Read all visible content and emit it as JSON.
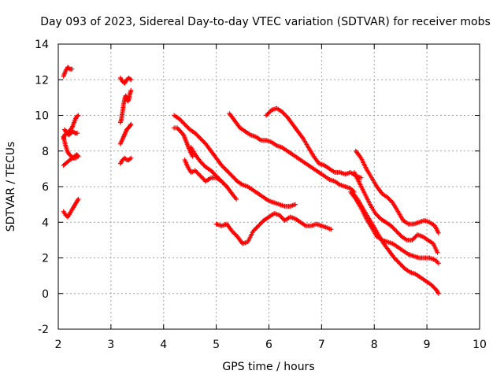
{
  "chart_data": {
    "type": "scatter",
    "title": "Day 093 of 2023, Sidereal Day-to-day VTEC variation (SDTVAR) for receiver mobs",
    "xlabel": "GPS time / hours",
    "ylabel": "SDTVAR / TECUs",
    "xlim": [
      2,
      10
    ],
    "ylim": [
      -2,
      14
    ],
    "grid": true,
    "marker": "+",
    "color": "#ff0000",
    "x_ticks": [
      2,
      3,
      4,
      5,
      6,
      7,
      8,
      9,
      10
    ],
    "y_ticks": [
      -2,
      0,
      2,
      4,
      6,
      8,
      10,
      12,
      14
    ],
    "series": [
      {
        "name": "s1",
        "x": [
          2.1,
          2.14,
          2.18,
          2.22,
          2.26
        ],
        "y": [
          12.2,
          12.5,
          12.7,
          12.6,
          12.6
        ]
      },
      {
        "name": "s2",
        "x": [
          2.1,
          2.12,
          2.16,
          2.2,
          2.26,
          2.3,
          2.34,
          2.38
        ],
        "y": [
          8.7,
          8.9,
          9.0,
          9.1,
          9.3,
          9.6,
          9.9,
          10.0
        ]
      },
      {
        "name": "s3",
        "x": [
          2.1,
          2.13,
          2.17,
          2.21,
          2.25,
          2.29,
          2.33,
          2.38
        ],
        "y": [
          8.8,
          8.4,
          8.0,
          7.8,
          7.7,
          7.6,
          7.6,
          7.7
        ]
      },
      {
        "name": "s4",
        "x": [
          2.1,
          2.14,
          2.18,
          2.22,
          2.27,
          2.31,
          2.35,
          2.38
        ],
        "y": [
          7.2,
          7.3,
          7.4,
          7.5,
          7.6,
          7.7,
          7.8,
          7.7
        ]
      },
      {
        "name": "s5",
        "x": [
          2.12,
          2.16,
          2.2,
          2.24,
          2.28,
          2.32,
          2.36
        ],
        "y": [
          9.2,
          9.0,
          8.9,
          9.0,
          9.1,
          9.0,
          9.0
        ]
      },
      {
        "name": "s6",
        "x": [
          2.1,
          2.14,
          2.18,
          2.22,
          2.26,
          2.3,
          2.34,
          2.38
        ],
        "y": [
          4.6,
          4.4,
          4.3,
          4.5,
          4.7,
          4.9,
          5.1,
          5.3
        ]
      },
      {
        "name": "s7",
        "x": [
          3.18,
          3.22,
          3.26,
          3.3,
          3.34,
          3.38
        ],
        "y": [
          12.1,
          11.9,
          11.8,
          12.0,
          12.1,
          12.0
        ]
      },
      {
        "name": "s8",
        "x": [
          3.18,
          3.2,
          3.22,
          3.24,
          3.26,
          3.28,
          3.3,
          3.32,
          3.34,
          3.36,
          3.38
        ],
        "y": [
          9.6,
          9.8,
          10.2,
          10.6,
          10.9,
          11.1,
          11.0,
          10.8,
          10.9,
          11.2,
          11.4
        ]
      },
      {
        "name": "s9",
        "x": [
          3.18,
          3.21,
          3.24,
          3.27,
          3.3,
          3.33,
          3.36,
          3.38
        ],
        "y": [
          8.4,
          8.6,
          8.8,
          9.0,
          9.2,
          9.3,
          9.4,
          9.5
        ]
      },
      {
        "name": "s10",
        "x": [
          3.18,
          3.22,
          3.26,
          3.3,
          3.34,
          3.38
        ],
        "y": [
          7.3,
          7.5,
          7.6,
          7.5,
          7.5,
          7.6
        ]
      },
      {
        "name": "s11",
        "x": [
          4.2,
          4.3,
          4.4,
          4.5,
          4.6,
          4.7,
          4.8,
          4.9,
          5.0,
          5.1,
          5.2,
          5.3,
          5.4,
          5.5,
          5.6,
          5.7,
          5.8,
          5.9,
          6.0,
          6.1,
          6.2,
          6.3,
          6.4,
          6.5
        ],
        "y": [
          10.0,
          9.8,
          9.5,
          9.2,
          9.0,
          8.7,
          8.4,
          8.0,
          7.6,
          7.2,
          6.9,
          6.6,
          6.3,
          6.1,
          6.0,
          5.8,
          5.6,
          5.4,
          5.2,
          5.1,
          5.0,
          4.9,
          4.9,
          5.0
        ]
      },
      {
        "name": "s12",
        "x": [
          4.2,
          4.26,
          4.32,
          4.38,
          4.42,
          4.46,
          4.5,
          4.55
        ],
        "y": [
          9.3,
          9.3,
          9.1,
          8.9,
          8.6,
          8.3,
          8.0,
          7.7
        ]
      },
      {
        "name": "s13",
        "x": [
          4.52,
          4.6,
          4.7,
          4.8,
          4.9,
          5.0,
          5.1,
          5.2,
          5.3,
          5.38
        ],
        "y": [
          8.2,
          7.8,
          7.4,
          7.1,
          6.9,
          6.6,
          6.3,
          6.0,
          5.6,
          5.3
        ]
      },
      {
        "name": "s14",
        "x": [
          4.4,
          4.46,
          4.52,
          4.6,
          4.7,
          4.8,
          4.9,
          5.0,
          5.1,
          5.2
        ],
        "y": [
          7.5,
          7.1,
          6.8,
          6.9,
          6.6,
          6.3,
          6.5,
          6.5,
          6.3,
          6.0
        ]
      },
      {
        "name": "s15",
        "x": [
          5.0,
          5.1,
          5.2,
          5.3,
          5.4,
          5.5,
          5.6,
          5.7,
          5.8,
          5.9,
          6.0,
          6.1,
          6.2,
          6.3,
          6.4,
          6.5,
          6.6,
          6.7,
          6.8,
          6.9,
          7.0,
          7.1,
          7.18
        ],
        "y": [
          3.9,
          3.8,
          3.9,
          3.5,
          3.2,
          2.8,
          2.9,
          3.5,
          3.8,
          4.1,
          4.3,
          4.5,
          4.4,
          4.1,
          4.3,
          4.2,
          4.0,
          3.8,
          3.8,
          3.9,
          3.8,
          3.7,
          3.6
        ]
      },
      {
        "name": "s16",
        "x": [
          5.25,
          5.35,
          5.45,
          5.55,
          5.65,
          5.75,
          5.85,
          5.95,
          6.05,
          6.15,
          6.25,
          6.35,
          6.45,
          6.55,
          6.65,
          6.75,
          6.85,
          6.95,
          7.05,
          7.15,
          7.25,
          7.35,
          7.45,
          7.55,
          7.62
        ],
        "y": [
          10.1,
          9.7,
          9.3,
          9.1,
          8.9,
          8.8,
          8.6,
          8.6,
          8.5,
          8.3,
          8.2,
          8.0,
          7.8,
          7.6,
          7.4,
          7.2,
          7.0,
          6.8,
          6.6,
          6.4,
          6.3,
          6.1,
          6.0,
          5.9,
          5.7
        ]
      },
      {
        "name": "s17",
        "x": [
          5.95,
          6.05,
          6.15,
          6.25,
          6.35,
          6.45,
          6.55,
          6.65,
          6.75,
          6.85,
          6.95,
          7.05,
          7.15,
          7.25,
          7.35,
          7.45,
          7.55,
          7.65,
          7.75
        ],
        "y": [
          10.0,
          10.3,
          10.4,
          10.2,
          9.9,
          9.5,
          9.1,
          8.7,
          8.2,
          7.7,
          7.3,
          7.2,
          7.0,
          6.8,
          6.8,
          6.7,
          6.8,
          6.6,
          6.5
        ]
      },
      {
        "name": "s18",
        "x": [
          7.65,
          7.75,
          7.85,
          7.95,
          8.05,
          8.15,
          8.25,
          8.35,
          8.45,
          8.55,
          8.65,
          8.75,
          8.85,
          8.95,
          9.05,
          9.15,
          9.22
        ],
        "y": [
          8.0,
          7.6,
          7.0,
          6.5,
          6.0,
          5.6,
          5.4,
          5.1,
          4.6,
          4.1,
          3.9,
          3.9,
          4.0,
          4.1,
          4.0,
          3.8,
          3.4
        ]
      },
      {
        "name": "s19",
        "x": [
          7.62,
          7.72,
          7.82,
          7.92,
          8.02,
          8.12,
          8.22,
          8.32,
          8.42,
          8.52,
          8.62,
          8.72,
          8.82,
          8.92,
          9.02,
          9.12,
          9.2
        ],
        "y": [
          6.8,
          6.2,
          5.6,
          5.0,
          4.5,
          4.2,
          4.0,
          3.8,
          3.5,
          3.2,
          3.0,
          3.0,
          3.3,
          3.2,
          3.0,
          2.8,
          2.3
        ]
      },
      {
        "name": "s20",
        "x": [
          7.55,
          7.65,
          7.75,
          7.85,
          7.95,
          8.05,
          8.15,
          8.25,
          8.35,
          8.45,
          8.55,
          8.65,
          8.75,
          8.85,
          8.95,
          9.05,
          9.15,
          9.22
        ],
        "y": [
          5.7,
          5.3,
          4.8,
          4.2,
          3.7,
          3.2,
          3.0,
          2.9,
          2.8,
          2.6,
          2.4,
          2.2,
          2.1,
          2.0,
          2.0,
          2.0,
          1.9,
          1.7
        ]
      },
      {
        "name": "s21",
        "x": [
          7.58,
          7.68,
          7.78,
          7.88,
          7.98,
          8.08,
          8.18,
          8.28,
          8.38,
          8.48,
          8.58,
          8.68,
          8.78,
          8.88,
          8.98,
          9.08,
          9.18,
          9.22
        ],
        "y": [
          5.7,
          5.3,
          4.8,
          4.3,
          3.8,
          3.3,
          2.8,
          2.4,
          2.0,
          1.7,
          1.4,
          1.2,
          1.1,
          0.9,
          0.7,
          0.5,
          0.2,
          0.0
        ]
      }
    ]
  }
}
